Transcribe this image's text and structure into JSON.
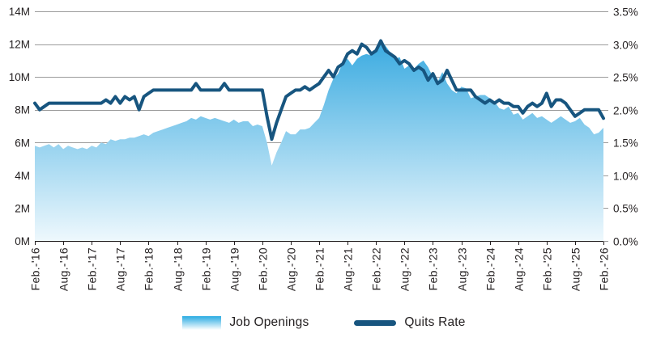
{
  "chart_data": {
    "type": "area+line",
    "title": "",
    "x_start_label": "Feb.-'16",
    "x_end_label": "Feb.-'26",
    "x_interval": "monthly",
    "x_tick_labels": [
      "Feb.-'16",
      "Aug.-'16",
      "Feb.-'17",
      "Aug.-'17",
      "Feb.-'18",
      "Aug.-'18",
      "Feb.-'19",
      "Aug.-'19",
      "Feb.-'20",
      "Aug.-'20",
      "Feb.-'21",
      "Aug.-'21",
      "Feb.-'22",
      "Aug.-'22",
      "Feb.-'23",
      "Aug.-'23",
      "Feb.-'24",
      "Aug.-'24",
      "Feb.-'25",
      "Aug.-'25",
      "Feb.-'26"
    ],
    "left_axis": {
      "unit": "M",
      "min": 0,
      "max": 14,
      "tick_labels": [
        "14M",
        "12M",
        "10M",
        "8M",
        "6M",
        "4M",
        "2M",
        "0M"
      ],
      "tick_values": [
        14,
        12,
        10,
        8,
        6,
        4,
        2,
        0
      ]
    },
    "right_axis": {
      "unit": "%",
      "min": 0,
      "max": 3.5,
      "tick_labels": [
        "3.5%",
        "3.0%",
        "2.5%",
        "2.0%",
        "1.5%",
        "1.0%",
        "0.5%",
        "0.0%"
      ],
      "tick_values": [
        3.5,
        3.0,
        2.5,
        2.0,
        1.5,
        1.0,
        0.5,
        0.0
      ]
    },
    "grid": "horizontal",
    "legend_position": "bottom",
    "series": [
      {
        "name": "Job Openings",
        "type": "area",
        "axis": "left",
        "unit": "millions",
        "values": [
          5.8,
          5.7,
          5.8,
          5.9,
          5.7,
          5.9,
          5.6,
          5.8,
          5.7,
          5.6,
          5.7,
          5.6,
          5.8,
          5.7,
          6.0,
          5.9,
          6.2,
          6.1,
          6.2,
          6.2,
          6.3,
          6.3,
          6.4,
          6.5,
          6.4,
          6.6,
          6.7,
          6.8,
          6.9,
          7.0,
          7.1,
          7.2,
          7.3,
          7.5,
          7.4,
          7.6,
          7.5,
          7.4,
          7.5,
          7.4,
          7.3,
          7.2,
          7.4,
          7.2,
          7.3,
          7.3,
          7.0,
          7.1,
          7.0,
          6.0,
          4.6,
          5.4,
          6.0,
          6.7,
          6.5,
          6.5,
          6.8,
          6.8,
          6.9,
          7.2,
          7.5,
          8.3,
          9.2,
          9.9,
          10.2,
          10.9,
          11.1,
          10.7,
          11.1,
          11.3,
          11.4,
          11.3,
          11.6,
          12.3,
          11.9,
          11.5,
          11.1,
          11.2,
          10.5,
          10.7,
          10.5,
          10.8,
          11.0,
          10.6,
          10.0,
          9.7,
          10.3,
          9.6,
          9.2,
          9.0,
          9.4,
          9.3,
          8.7,
          8.8,
          8.9,
          8.9,
          8.7,
          8.5,
          8.1,
          8.0,
          8.2,
          7.7,
          7.8,
          7.4,
          7.6,
          7.8,
          7.5,
          7.6,
          7.4,
          7.2,
          7.4,
          7.6,
          7.4,
          7.2,
          7.3,
          7.5,
          7.1,
          6.9,
          6.5,
          6.6,
          6.9
        ]
      },
      {
        "name": "Quits Rate",
        "type": "line",
        "axis": "right",
        "unit": "percent",
        "values": [
          2.1,
          2.0,
          2.05,
          2.1,
          2.1,
          2.1,
          2.1,
          2.1,
          2.1,
          2.1,
          2.1,
          2.1,
          2.1,
          2.1,
          2.1,
          2.15,
          2.1,
          2.2,
          2.1,
          2.2,
          2.15,
          2.2,
          2.0,
          2.2,
          2.25,
          2.3,
          2.3,
          2.3,
          2.3,
          2.3,
          2.3,
          2.3,
          2.3,
          2.3,
          2.4,
          2.3,
          2.3,
          2.3,
          2.3,
          2.3,
          2.4,
          2.3,
          2.3,
          2.3,
          2.3,
          2.3,
          2.3,
          2.3,
          2.3,
          1.9,
          1.55,
          1.8,
          2.0,
          2.2,
          2.25,
          2.3,
          2.3,
          2.35,
          2.3,
          2.35,
          2.4,
          2.5,
          2.6,
          2.5,
          2.65,
          2.7,
          2.85,
          2.9,
          2.85,
          3.0,
          2.95,
          2.85,
          2.9,
          3.05,
          2.9,
          2.85,
          2.8,
          2.7,
          2.75,
          2.7,
          2.6,
          2.65,
          2.6,
          2.45,
          2.55,
          2.4,
          2.45,
          2.6,
          2.45,
          2.3,
          2.3,
          2.3,
          2.3,
          2.2,
          2.15,
          2.1,
          2.15,
          2.1,
          2.15,
          2.1,
          2.1,
          2.05,
          2.05,
          1.95,
          2.05,
          2.1,
          2.05,
          2.1,
          2.25,
          2.05,
          2.15,
          2.15,
          2.1,
          2.0,
          1.9,
          1.95,
          2.0,
          2.0,
          2.0,
          2.0,
          1.87
        ]
      }
    ],
    "colors": {
      "line": "#17557f",
      "area_gradient_top": "#1f9fdc",
      "area_gradient_bottom": "#eef8fd",
      "gridline": "#9b9b9b",
      "axis": "#231f20",
      "text": "#231f20"
    }
  },
  "legend": {
    "job_openings_label": "Job Openings",
    "quits_rate_label": "Quits Rate"
  }
}
